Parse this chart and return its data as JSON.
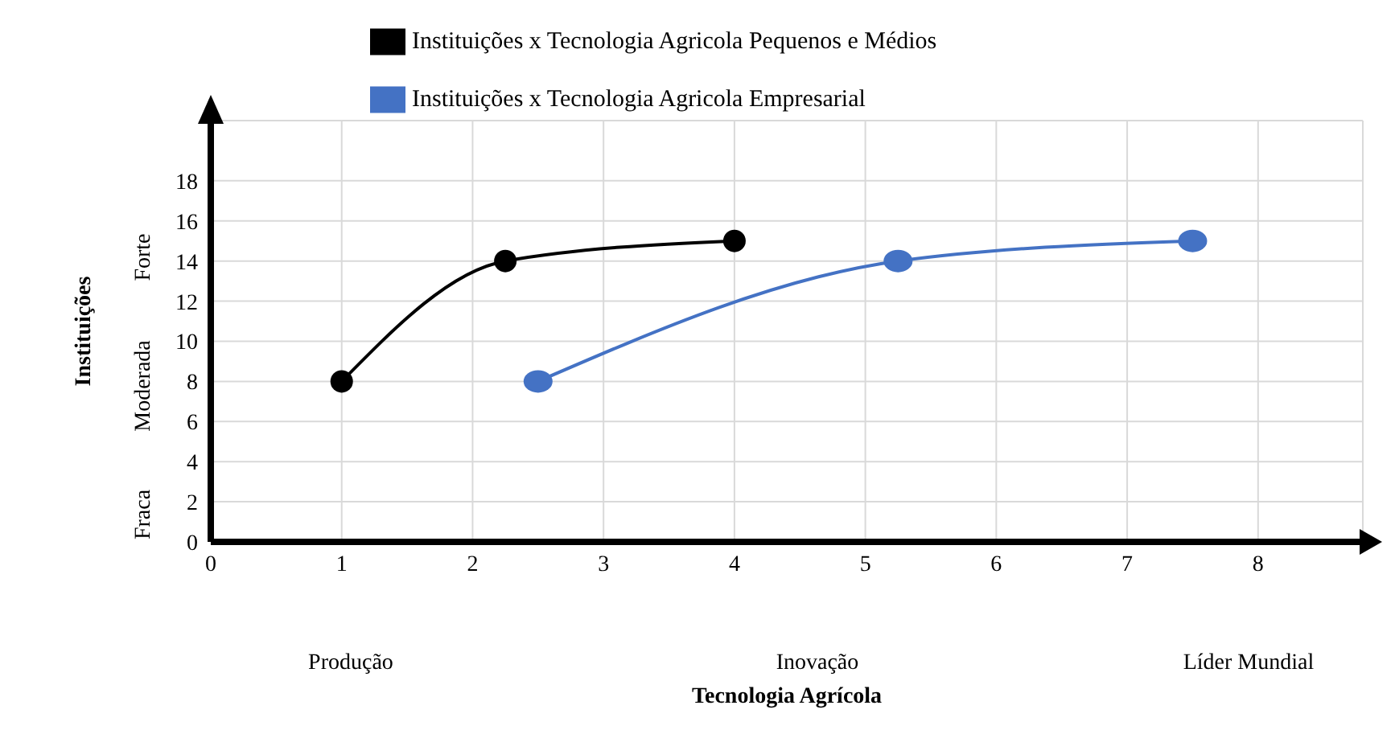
{
  "chart_data": {
    "type": "line",
    "xlabel": "Tecnologia Agrícola",
    "ylabel": "Instituições",
    "series": [
      {
        "name": "Instituições x Tecnologia Agricola Pequenos e Médios",
        "color": "#000000",
        "x": [
          1,
          2.25,
          4
        ],
        "values": [
          8,
          14,
          15
        ]
      },
      {
        "name": "Instituições x Tecnologia Agricola Empresarial",
        "color": "#4472c4",
        "x": [
          2.5,
          5.25,
          7.5
        ],
        "values": [
          8,
          14,
          15
        ]
      }
    ],
    "xlim": [
      0,
      8.8
    ],
    "xticks": [
      0,
      1,
      2,
      3,
      4,
      5,
      6,
      7,
      8
    ],
    "ylim": [
      0,
      21
    ],
    "yticks": [
      0,
      2,
      4,
      6,
      8,
      10,
      12,
      14,
      16,
      18
    ],
    "annotations": [
      "Forte",
      "Moderada",
      "Fraca",
      "Produção",
      "Inovação",
      "Líder Mundial"
    ],
    "grid": true,
    "legend": "top",
    "marker": "circle",
    "line_style": "solid"
  }
}
